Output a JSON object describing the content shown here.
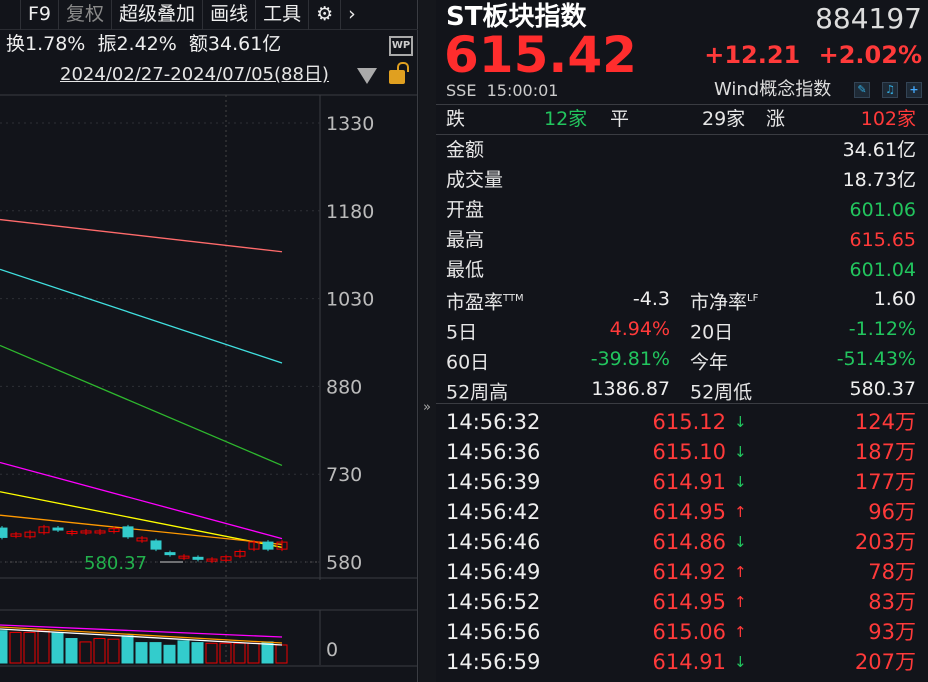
{
  "toolbar": {
    "items": [
      "F9",
      "复权",
      "超级叠加",
      "画线",
      "工具"
    ],
    "gear_icon": "gear-icon",
    "more_icon": "chevron-right-icon"
  },
  "stats": {
    "turnover": "换1.78%",
    "amplitude": "振2.42%",
    "amount": "额34.61亿"
  },
  "wp_label": "WP",
  "range": "2024/02/27-2024/07/05(88日)",
  "chart_data": {
    "type": "candlestick",
    "price_ticks": [
      1330,
      1180,
      1030,
      880,
      730,
      580
    ],
    "ylim": [
      580,
      1330
    ],
    "low_label": "580.37",
    "candles": [
      {
        "o": 638,
        "c": 622
      },
      {
        "o": 624,
        "c": 628
      },
      {
        "o": 623,
        "c": 631
      },
      {
        "o": 630,
        "c": 640
      },
      {
        "o": 638,
        "c": 637
      },
      {
        "o": 629,
        "c": 632
      },
      {
        "o": 630,
        "c": 633
      },
      {
        "o": 631,
        "c": 633
      },
      {
        "o": 632,
        "c": 637
      },
      {
        "o": 640,
        "c": 623
      },
      {
        "o": 616,
        "c": 621
      },
      {
        "o": 616,
        "c": 602
      },
      {
        "o": 596,
        "c": 594
      },
      {
        "o": 587,
        "c": 590
      },
      {
        "o": 588,
        "c": 587
      },
      {
        "o": 583,
        "c": 585
      },
      {
        "o": 583,
        "c": 589
      },
      {
        "o": 590,
        "c": 598
      },
      {
        "o": 602,
        "c": 614
      },
      {
        "o": 614,
        "c": 602
      },
      {
        "o": 602,
        "c": 614
      }
    ],
    "ma_lines": [
      {
        "color": "#ff6b6b",
        "values": [
          1165,
          1110
        ]
      },
      {
        "color": "#40e0e0",
        "values": [
          1080,
          920
        ]
      },
      {
        "color": "#2eb82e",
        "values": [
          950,
          745
        ]
      },
      {
        "color": "#ff00ff",
        "values": [
          750,
          620
        ]
      },
      {
        "color": "#ffff00",
        "values": [
          700,
          605
        ]
      },
      {
        "color": "#ff9900",
        "values": [
          660,
          610
        ]
      }
    ],
    "volume_tick": "0",
    "volumes": [
      {
        "v": 95,
        "up": false
      },
      {
        "v": 90,
        "up": true
      },
      {
        "v": 90,
        "up": true
      },
      {
        "v": 97,
        "up": true
      },
      {
        "v": 88,
        "up": false
      },
      {
        "v": 72,
        "up": false
      },
      {
        "v": 62,
        "up": true
      },
      {
        "v": 72,
        "up": true
      },
      {
        "v": 70,
        "up": true
      },
      {
        "v": 80,
        "up": false
      },
      {
        "v": 60,
        "up": false
      },
      {
        "v": 60,
        "up": false
      },
      {
        "v": 52,
        "up": false
      },
      {
        "v": 65,
        "up": false
      },
      {
        "v": 60,
        "up": false
      },
      {
        "v": 58,
        "up": true
      },
      {
        "v": 58,
        "up": true
      },
      {
        "v": 58,
        "up": true
      },
      {
        "v": 58,
        "up": true
      },
      {
        "v": 62,
        "up": false
      },
      {
        "v": 53,
        "up": true
      }
    ]
  },
  "quote": {
    "name": "ST板块指数",
    "code": "884197",
    "price": "615.42",
    "change": "+12.21",
    "change_pct": "+2.02%",
    "exchange": "SSE",
    "time": "15:00:01",
    "category": "Wind概念指数",
    "breadth": {
      "down_label": "跌",
      "down": "12家",
      "flat_label": "平",
      "flat": "29家",
      "up_label": "涨",
      "up": "102家"
    },
    "fields": [
      {
        "label": "金额",
        "value": "34.61亿",
        "color": "white"
      },
      {
        "label": "成交量",
        "value": "18.73亿",
        "color": "white"
      },
      {
        "label": "开盘",
        "value": "601.06",
        "color": "green"
      },
      {
        "label": "最高",
        "value": "615.65",
        "color": "red"
      },
      {
        "label": "最低",
        "value": "601.04",
        "color": "green"
      }
    ],
    "pairs": [
      {
        "l1": "市盈率",
        "sup1": "TTM",
        "v1": "-4.3",
        "c1": "white",
        "l2": "市净率",
        "sup2": "LF",
        "v2": "1.60",
        "c2": "white"
      },
      {
        "l1": "5日",
        "sup1": "",
        "v1": "4.94%",
        "c1": "red",
        "l2": "20日",
        "sup2": "",
        "v2": "-1.12%",
        "c2": "green"
      },
      {
        "l1": "60日",
        "sup1": "",
        "v1": "-39.81%",
        "c1": "green",
        "l2": "今年",
        "sup2": "",
        "v2": "-51.43%",
        "c2": "green"
      },
      {
        "l1": "52周高",
        "sup1": "",
        "v1": "1386.87",
        "c1": "white",
        "l2": "52周低",
        "sup2": "",
        "v2": "580.37",
        "c2": "white"
      }
    ]
  },
  "ticks": [
    {
      "time": "14:56:32",
      "price": "615.12",
      "dir": "down",
      "vol": "124万"
    },
    {
      "time": "14:56:36",
      "price": "615.10",
      "dir": "down",
      "vol": "187万"
    },
    {
      "time": "14:56:39",
      "price": "614.91",
      "dir": "down",
      "vol": "177万"
    },
    {
      "time": "14:56:42",
      "price": "614.95",
      "dir": "up",
      "vol": "96万"
    },
    {
      "time": "14:56:46",
      "price": "614.86",
      "dir": "down",
      "vol": "203万"
    },
    {
      "time": "14:56:49",
      "price": "614.92",
      "dir": "up",
      "vol": "78万"
    },
    {
      "time": "14:56:52",
      "price": "614.95",
      "dir": "up",
      "vol": "83万"
    },
    {
      "time": "14:56:56",
      "price": "615.06",
      "dir": "up",
      "vol": "93万"
    },
    {
      "time": "14:56:59",
      "price": "614.91",
      "dir": "down",
      "vol": "207万"
    }
  ]
}
